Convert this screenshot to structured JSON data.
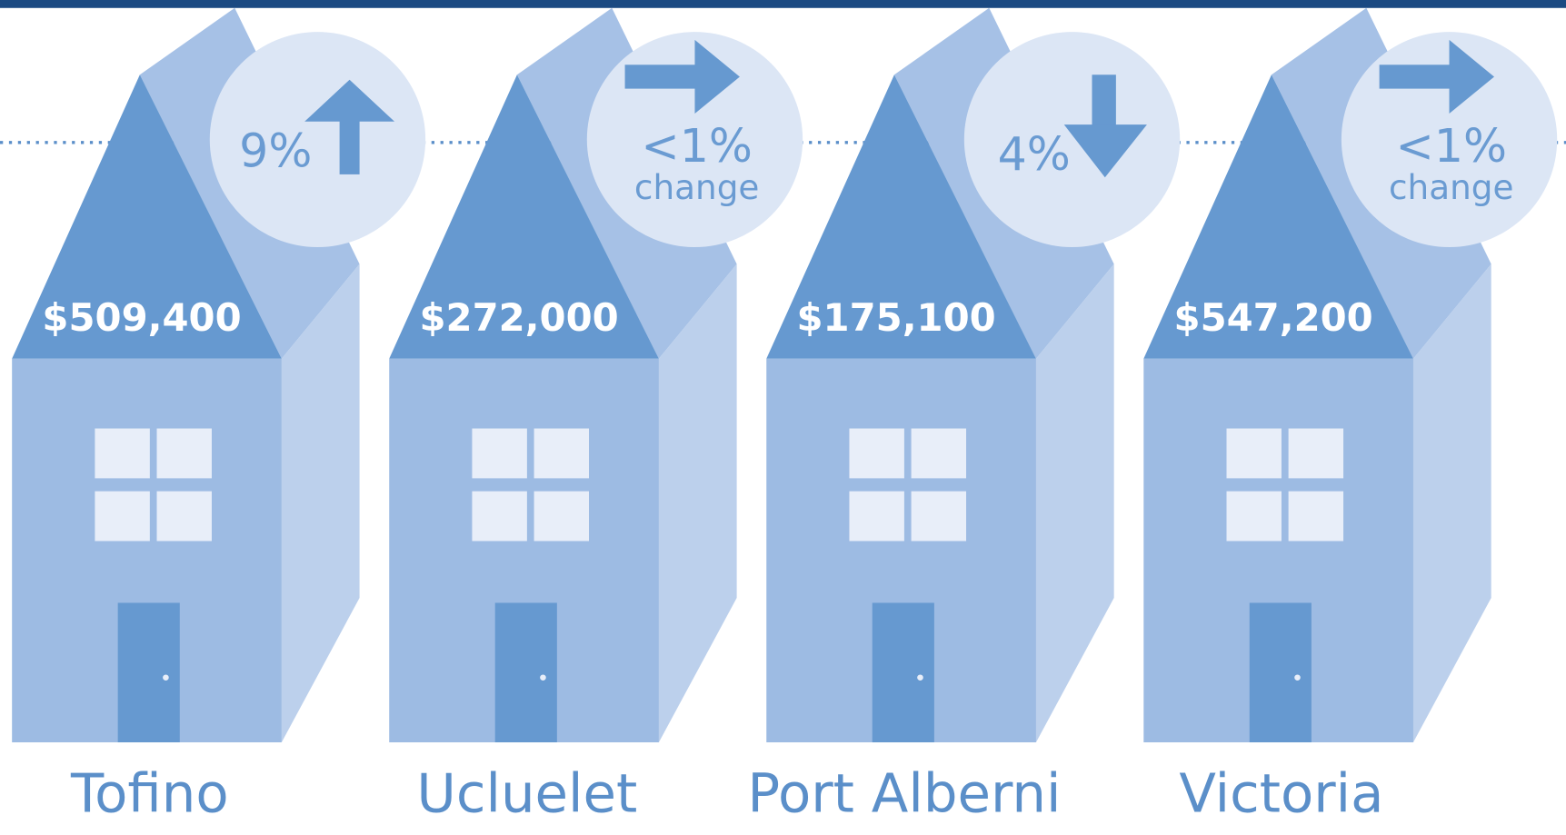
{
  "houses": [
    {
      "name": "Tofino",
      "price": "$509,400",
      "change": "9%",
      "arrow": "up"
    },
    {
      "name": "Ucluelet",
      "price": "$272,000",
      "change": "<1%",
      "change_note": "change",
      "arrow": "right"
    },
    {
      "name": "Port Alberni",
      "price": "$175,100",
      "change": "4%",
      "arrow": "down"
    },
    {
      "name": "Victoria",
      "price": "$547,200",
      "change": "<1%",
      "change_note": "change",
      "arrow": "right"
    }
  ]
}
